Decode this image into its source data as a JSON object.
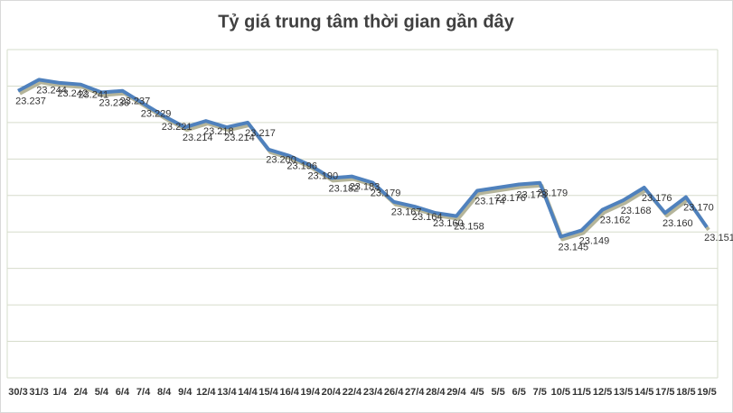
{
  "chart_data": {
    "type": "line",
    "title": "Tỷ giá trung tâm thời gian gần đây",
    "categories": [
      "30/3",
      "31/3",
      "1/4",
      "2/4",
      "5/4",
      "6/4",
      "7/4",
      "8/4",
      "9/4",
      "12/4",
      "13/4",
      "14/4",
      "15/4",
      "16/4",
      "19/4",
      "20/4",
      "22/4",
      "23/4",
      "26/4",
      "27/4",
      "28/4",
      "29/4",
      "4/5",
      "5/5",
      "6/5",
      "7/5",
      "10/5",
      "11/5",
      "12/5",
      "13/5",
      "14/5",
      "17/5",
      "18/5",
      "19/5"
    ],
    "series": [
      {
        "name": "Tỷ giá trung tâm",
        "color": "#4f81bd",
        "values": [
          23.237,
          23.244,
          23.242,
          23.241,
          23.236,
          23.237,
          23.229,
          23.221,
          23.214,
          23.218,
          23.214,
          23.217,
          23.2,
          23.196,
          23.19,
          23.182,
          23.183,
          23.179,
          23.167,
          23.164,
          23.16,
          23.158,
          23.174,
          23.176,
          23.178,
          23.179,
          23.145,
          23.149,
          23.162,
          23.168,
          23.176,
          23.16,
          23.17,
          23.151
        ],
        "value_labels": [
          "23.237",
          "23.244",
          "23.242",
          "23.241",
          "23.236",
          "23.237",
          "23.229",
          "23.221",
          "23.214",
          "23.218",
          "23.214",
          "23.217",
          "23.200",
          "23.196",
          "23.190",
          "23.182",
          "23.183",
          "23.179",
          "23.167",
          "23.164",
          "23.160",
          "23.158",
          "23.174",
          "23.176",
          "23.178",
          "23.179",
          "23.145",
          "23.149",
          "23.162",
          "23.168",
          "23.176",
          "23.160",
          "23.170",
          "23.151"
        ]
      }
    ],
    "ylim": [
      23.056,
      23.263
    ],
    "grid": true
  }
}
